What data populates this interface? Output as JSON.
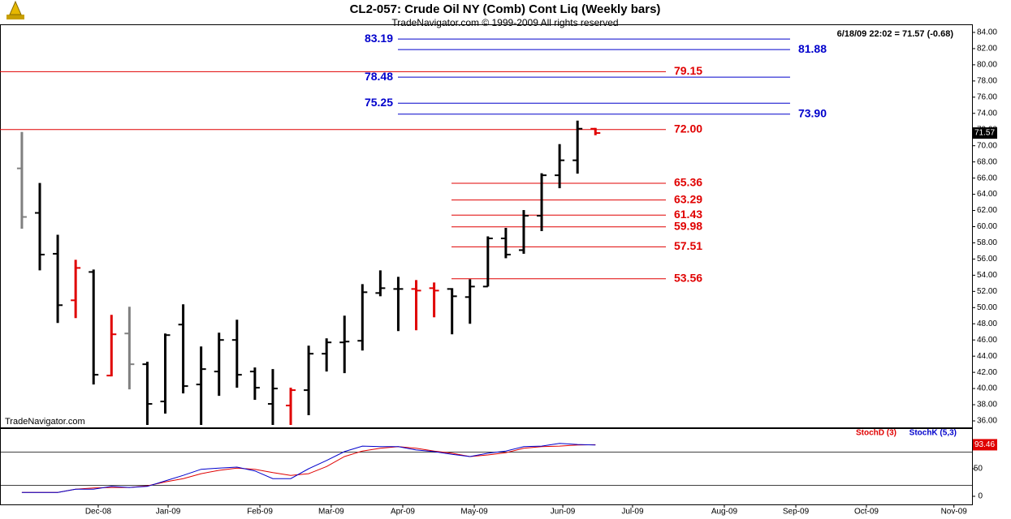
{
  "chart_data": [
    {
      "type": "ohlc",
      "title": "CL2-057:  Crude Oil NY (Comb) Cont Liq  (Weekly bars)",
      "subtitle": "TradeNavigator.com © 1999-2009 All rights reserved",
      "info": "6/18/09 22:02 = 71.57 (-0.68)",
      "watermark": "TradeNavigator.com",
      "x": [
        0,
        1,
        2,
        3,
        4,
        5,
        6,
        7,
        8,
        9,
        10,
        11,
        12,
        13,
        14,
        15,
        16,
        17,
        18,
        19,
        20,
        21,
        22,
        23,
        24,
        25,
        26,
        27,
        28,
        29,
        30,
        31,
        32
      ],
      "open": [
        67.2,
        61.7,
        56.65,
        50.9,
        54.4,
        41.6,
        46.8,
        43.0,
        38.4,
        47.9,
        40.5,
        42.1,
        46.0,
        42.1,
        38.1,
        37.9,
        39.8,
        44.3,
        45.7,
        45.9,
        51.8,
        52.3,
        52.3,
        52.4,
        52.3,
        51.3,
        52.6,
        58.55,
        57.1,
        61.35,
        66.35,
        68.2,
        72.1
      ],
      "high": [
        71.7,
        65.4,
        59.0,
        55.9,
        54.7,
        49.1,
        50.1,
        43.3,
        46.8,
        50.4,
        45.2,
        46.9,
        48.5,
        42.6,
        42.4,
        40.1,
        45.3,
        46.2,
        49.0,
        52.9,
        54.6,
        53.8,
        53.4,
        53.1,
        52.4,
        53.5,
        58.8,
        59.85,
        62.05,
        66.6,
        70.2,
        73.1,
        72.2
      ],
      "low": [
        59.75,
        54.6,
        48.1,
        48.7,
        40.5,
        41.5,
        39.9,
        35.5,
        36.9,
        39.4,
        35.5,
        39.1,
        40.1,
        38.6,
        35.5,
        35.5,
        36.7,
        42.1,
        41.9,
        44.7,
        51.4,
        47.1,
        47.2,
        48.8,
        46.7,
        48.0,
        52.6,
        56.1,
        56.65,
        59.45,
        64.75,
        66.55,
        71.3
      ],
      "close": [
        61.2,
        56.55,
        50.3,
        54.9,
        41.7,
        46.7,
        43.0,
        38.1,
        46.6,
        40.3,
        42.4,
        46.0,
        41.7,
        40.1,
        40.0,
        39.8,
        44.3,
        45.7,
        45.8,
        51.9,
        52.4,
        52.3,
        52.1,
        52.1,
        51.4,
        52.6,
        58.55,
        56.55,
        61.35,
        66.35,
        68.2,
        72.1,
        71.57
      ],
      "colors": [
        "#808080",
        "#000000",
        "#000000",
        "#e00000",
        "#000000",
        "#e00000",
        "#808080",
        "#000000",
        "#000000",
        "#000000",
        "#000000",
        "#000000",
        "#000000",
        "#000000",
        "#000000",
        "#e00000",
        "#000000",
        "#000000",
        "#000000",
        "#000000",
        "#000000",
        "#000000",
        "#e00000",
        "#e00000",
        "#000000",
        "#000000",
        "#000000",
        "#000000",
        "#000000",
        "#000000",
        "#000000",
        "#000000",
        "#e00000"
      ],
      "xlim": [
        -1.22,
        53.01
      ],
      "xticks": [
        {
          "value": 4.26,
          "label": "Dec-08"
        },
        {
          "value": 8.16,
          "label": "Jan-09"
        },
        {
          "value": 13.28,
          "label": "Feb-09"
        },
        {
          "value": 17.26,
          "label": "Mar-09"
        },
        {
          "value": 21.25,
          "label": "Apr-09"
        },
        {
          "value": 25.24,
          "label": "May-09"
        },
        {
          "value": 30.18,
          "label": "Jun-09"
        },
        {
          "value": 34.07,
          "label": "Jul-09"
        },
        {
          "value": 39.19,
          "label": "Aug-09"
        },
        {
          "value": 43.18,
          "label": "Sep-09"
        },
        {
          "value": 47.12,
          "label": "Oct-09"
        },
        {
          "value": 52.0,
          "label": "Nov-09"
        }
      ],
      "ylim": [
        35.2,
        85
      ],
      "yticks": [
        {
          "value": 36,
          "label": "36.00"
        },
        {
          "value": 38,
          "label": "38.00"
        },
        {
          "value": 40,
          "label": "40.00"
        },
        {
          "value": 42,
          "label": "42.00"
        },
        {
          "value": 44,
          "label": "44.00"
        },
        {
          "value": 46,
          "label": "46.00"
        },
        {
          "value": 48,
          "label": "48.00"
        },
        {
          "value": 50,
          "label": "50.00"
        },
        {
          "value": 52,
          "label": "52.00"
        },
        {
          "value": 54,
          "label": "54.00"
        },
        {
          "value": 56,
          "label": "56.00"
        },
        {
          "value": 58,
          "label": "58.00"
        },
        {
          "value": 60,
          "label": "60.00"
        },
        {
          "value": 62,
          "label": "62.00"
        },
        {
          "value": 64,
          "label": "64.00"
        },
        {
          "value": 66,
          "label": "66.00"
        },
        {
          "value": 68,
          "label": "68.00"
        },
        {
          "value": 70,
          "label": "70.00"
        },
        {
          "value": 72,
          "label": "72.00"
        },
        {
          "value": 74,
          "label": "74.00"
        },
        {
          "value": 76,
          "label": "76.00"
        },
        {
          "value": 78,
          "label": "78.00"
        },
        {
          "value": 80,
          "label": "80.00"
        },
        {
          "value": 82,
          "label": "82.00"
        },
        {
          "value": 84,
          "label": "84.00"
        }
      ],
      "levels": {
        "values": [
          83.19,
          81.88,
          78.48,
          75.25,
          73.9,
          79.15,
          72,
          65.36,
          63.29,
          61.43,
          59.98,
          57.51,
          53.56
        ],
        "value_labels": [
          "83.19",
          "81.88",
          "78.48",
          "75.25",
          "73.90",
          "79.15",
          "72.00",
          "65.36",
          "63.29",
          "61.43",
          "59.98",
          "57.51",
          "53.56"
        ],
        "colors": [
          "#0000cc",
          "#0000cc",
          "#0000cc",
          "#0000cc",
          "#0000cc",
          "#e00000",
          "#e00000",
          "#e00000",
          "#e00000",
          "#e00000",
          "#e00000",
          "#e00000",
          "#e00000"
        ],
        "x_start": [
          20.98,
          20.98,
          20.98,
          20.98,
          20.98,
          -1.22,
          -1.22,
          23.97,
          23.97,
          23.97,
          23.97,
          23.97,
          23.97
        ],
        "x_end": [
          42.86,
          42.86,
          42.86,
          42.86,
          42.86,
          35.93,
          35.93,
          35.93,
          35.93,
          35.93,
          35.93,
          35.93,
          35.93
        ],
        "label_side": [
          "left",
          "right",
          "left",
          "left",
          "right",
          "right",
          "right",
          "right",
          "right",
          "right",
          "right",
          "right",
          "right"
        ]
      }
    },
    {
      "type": "line",
      "x": [
        0,
        1,
        2,
        3,
        4,
        5,
        6,
        7,
        8,
        9,
        10,
        11,
        12,
        13,
        14,
        15,
        16,
        17,
        18,
        19,
        20,
        21,
        22,
        23,
        24,
        25,
        26,
        27,
        28,
        29,
        30,
        31,
        32
      ],
      "series": [
        {
          "name": "StochD (3)",
          "color": "#e00000",
          "values": [
            7,
            7,
            7,
            13,
            15,
            16,
            16,
            19,
            26,
            32,
            41,
            47,
            51,
            49,
            43,
            38,
            41,
            54,
            72,
            82,
            87,
            90,
            87,
            82,
            78,
            72,
            75,
            79,
            87,
            90,
            91,
            93,
            93.46
          ]
        },
        {
          "name": "StochK (5,3)",
          "color": "#0000cc",
          "values": [
            7,
            7,
            7,
            13,
            13,
            18,
            16,
            18,
            28,
            38,
            49,
            51,
            53,
            46,
            32,
            32,
            50,
            65,
            81,
            91,
            90,
            90,
            84,
            81,
            76,
            72,
            78,
            82,
            90,
            91,
            96,
            94,
            93
          ]
        }
      ],
      "xlim": [
        -1.22,
        53.01
      ],
      "ylim": [
        -14.7,
        123.5
      ],
      "yticks": [
        0,
        50
      ],
      "levels": [
        20,
        80
      ]
    }
  ]
}
